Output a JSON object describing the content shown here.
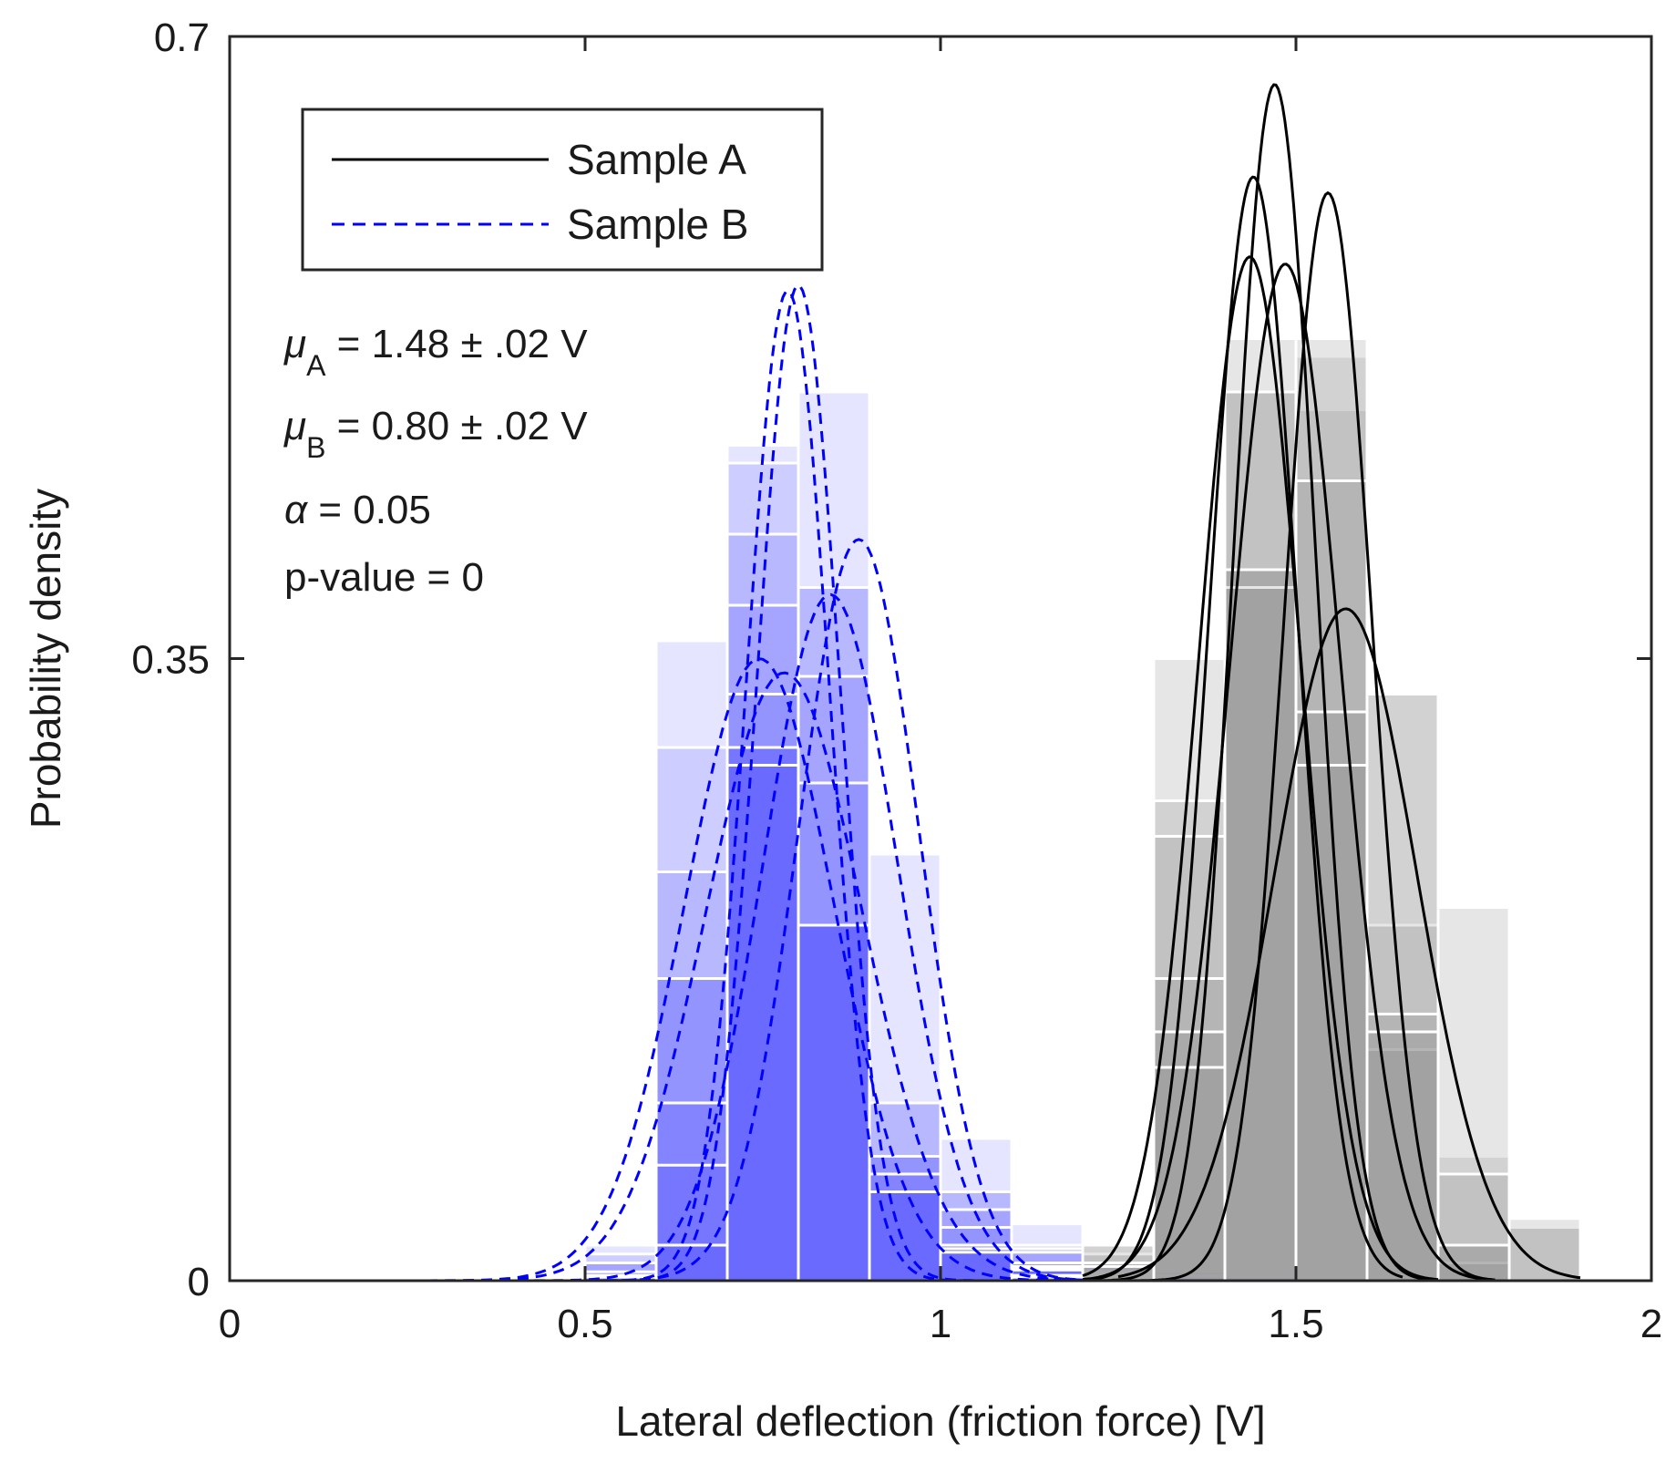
{
  "chart_data": {
    "type": "histogram with fitted normal curves",
    "xlabel": "Lateral deflection (friction force) [V]",
    "ylabel": "Probability density",
    "xlim": [
      0,
      2
    ],
    "ylim": [
      0,
      0.7
    ],
    "xticks": [
      {
        "value": 0,
        "label": "0"
      },
      {
        "value": 0.5,
        "label": "0.5"
      },
      {
        "value": 1,
        "label": "1"
      },
      {
        "value": 1.5,
        "label": "1.5"
      },
      {
        "value": 2,
        "label": "2"
      }
    ],
    "yticks": [
      {
        "value": 0,
        "label": "0"
      },
      {
        "value": 0.35,
        "label": "0.35"
      },
      {
        "value": 0.7,
        "label": "0.7"
      }
    ],
    "legend": [
      {
        "name": "Sample A",
        "style": "solid",
        "color": "#000000"
      },
      {
        "name": "Sample B",
        "style": "dashed",
        "color": "#0000ff"
      }
    ],
    "annotations": [
      {
        "symbol": "μ",
        "sub": "A",
        "text": " = 1.48 ± .02 V"
      },
      {
        "symbol": "μ",
        "sub": "B",
        "text": " = 0.80 ± .02 V"
      },
      {
        "symbol": "α",
        "sub": "",
        "text": " = 0.05"
      },
      {
        "symbol": "",
        "sub": "",
        "text": "p-value = 0"
      }
    ],
    "bin_width": 0.1,
    "bin_starts": [
      0.5,
      0.6,
      0.7,
      0.8,
      0.9,
      1.0,
      1.1,
      1.2,
      1.3,
      1.4,
      1.5,
      1.6,
      1.7,
      1.8
    ],
    "hist_A": {
      "color": "#808080",
      "alpha": 0.2,
      "layers": [
        [
          0,
          0,
          0,
          0,
          0,
          0,
          0,
          0,
          0.35,
          0.5,
          0.49,
          0.33,
          0.07,
          0
        ],
        [
          0,
          0,
          0,
          0,
          0,
          0,
          0.002,
          0.02,
          0.27,
          0.53,
          0.52,
          0.13,
          0.01,
          0
        ],
        [
          0,
          0,
          0,
          0,
          0,
          0,
          0,
          0.015,
          0.25,
          0.5,
          0.53,
          0.2,
          0.02,
          0
        ],
        [
          0,
          0,
          0,
          0,
          0,
          0,
          0.003,
          0.02,
          0.17,
          0.4,
          0.45,
          0.33,
          0.21,
          0.03
        ],
        [
          0,
          0,
          0,
          0,
          0,
          0,
          0.002,
          0.01,
          0.14,
          0.39,
          0.32,
          0.15,
          0.06,
          0.03
        ],
        [
          0,
          0,
          0,
          0,
          0,
          0,
          0,
          0.008,
          0.12,
          0.4,
          0.29,
          0.14,
          0.02,
          0.035
        ]
      ]
    },
    "hist_B": {
      "color": "#0000ff",
      "alpha": 0.1,
      "layers": [
        [
          0.02,
          0.36,
          0.47,
          0.5,
          0.24,
          0.08,
          0.032,
          0.01,
          0.005,
          0.003,
          0,
          0,
          0,
          0
        ],
        [
          0.015,
          0.3,
          0.46,
          0.39,
          0.1,
          0.05,
          0.02,
          0.005,
          0.003,
          0.002,
          0,
          0,
          0,
          0
        ],
        [
          0.01,
          0.23,
          0.42,
          0.39,
          0.1,
          0.05,
          0.018,
          0.005,
          0.002,
          0,
          0,
          0,
          0,
          0
        ],
        [
          0.01,
          0.17,
          0.38,
          0.34,
          0.07,
          0.04,
          0.016,
          0.004,
          0.002,
          0,
          0,
          0,
          0,
          0
        ],
        [
          0.005,
          0.17,
          0.33,
          0.28,
          0.07,
          0.03,
          0.01,
          0.003,
          0,
          0,
          0,
          0,
          0,
          0
        ],
        [
          0.003,
          0.1,
          0.3,
          0.2,
          0.06,
          0.02,
          0.008,
          0.002,
          0,
          0,
          0,
          0,
          0,
          0
        ],
        [
          0.002,
          0.065,
          0.3,
          0.2,
          0.05,
          0.018,
          0.007,
          0.002,
          0,
          0,
          0,
          0,
          0,
          0
        ],
        [
          0.002,
          0.02,
          0.29,
          0.2,
          0.05,
          0.016,
          0.006,
          0.001,
          0,
          0,
          0,
          0,
          0,
          0
        ]
      ]
    },
    "curves_A": [
      {
        "mean": 1.47,
        "sd": 0.058,
        "peak": 0.673,
        "range": [
          1.2,
          1.7
        ]
      },
      {
        "mean": 1.44,
        "sd": 0.062,
        "peak": 0.621,
        "range": [
          1.2,
          1.65
        ]
      },
      {
        "mean": 1.435,
        "sd": 0.072,
        "peak": 0.576,
        "range": [
          1.2,
          1.7
        ]
      },
      {
        "mean": 1.545,
        "sd": 0.062,
        "peak": 0.612,
        "range": [
          1.25,
          1.78
        ]
      },
      {
        "mean": 1.485,
        "sd": 0.078,
        "peak": 0.572,
        "range": [
          1.2,
          1.78
        ]
      },
      {
        "mean": 1.57,
        "sd": 0.1,
        "peak": 0.378,
        "range": [
          1.25,
          1.9
        ]
      }
    ],
    "curves_B": [
      {
        "mean": 0.785,
        "sd": 0.058,
        "peak": 0.557,
        "range": [
          0.48,
          1.1
        ]
      },
      {
        "mean": 0.8,
        "sd": 0.058,
        "peak": 0.56,
        "range": [
          0.5,
          1.12
        ]
      },
      {
        "mean": 0.885,
        "sd": 0.085,
        "peak": 0.417,
        "range": [
          0.5,
          1.2
        ]
      },
      {
        "mean": 0.845,
        "sd": 0.095,
        "peak": 0.386,
        "range": [
          0.3,
          1.2
        ]
      },
      {
        "mean": 0.745,
        "sd": 0.105,
        "peak": 0.35,
        "range": [
          0.2,
          1.2
        ]
      },
      {
        "mean": 0.78,
        "sd": 0.11,
        "peak": 0.342,
        "range": [
          0.2,
          1.2
        ]
      }
    ]
  }
}
